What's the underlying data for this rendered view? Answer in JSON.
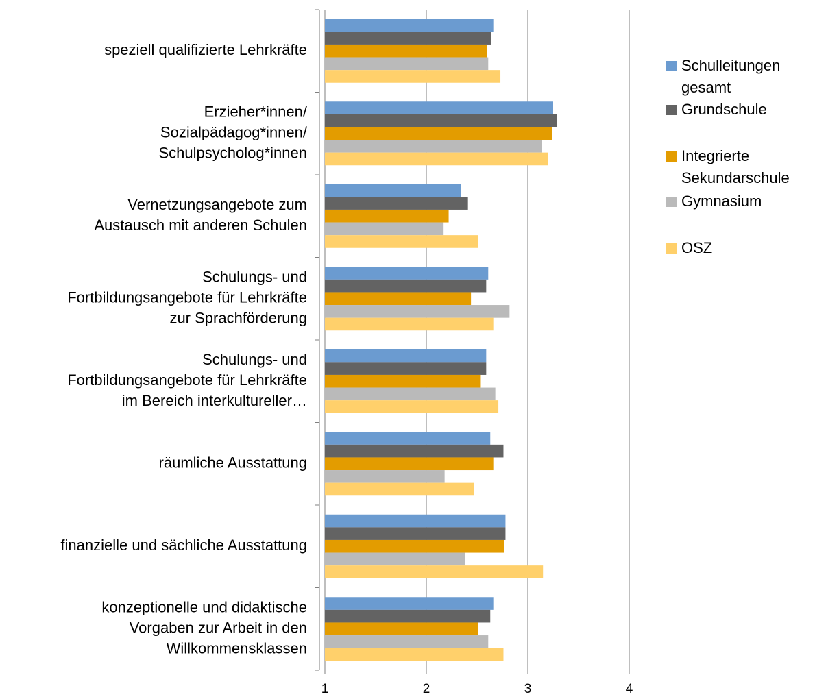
{
  "chart_data": {
    "type": "barh",
    "categories": [
      [
        "speziell qualifizierte Lehrkräfte"
      ],
      [
        "Erzieher*innen/",
        "Sozialpädagog*innen/",
        "Schulpsycholog*innen"
      ],
      [
        "Vernetzungsangebote zum",
        "Austausch mit anderen Schulen"
      ],
      [
        "Schulungs- und",
        "Fortbildungsangebote für Lehrkräfte",
        "zur Sprachförderung"
      ],
      [
        "Schulungs- und",
        "Fortbildungsangebote für Lehrkräfte",
        "im Bereich interkultureller…"
      ],
      [
        "räumliche Ausstattung"
      ],
      [
        "finanzielle und sächliche Ausstattung"
      ],
      [
        "konzeptionelle und didaktische",
        "Vorgaben zur Arbeit in den",
        "Willkommensklassen"
      ]
    ],
    "series": [
      {
        "name": "Schulleitungen gesamt",
        "color": "#6b9bd0",
        "values": [
          2.66,
          3.25,
          2.34,
          2.61,
          2.59,
          2.63,
          2.78,
          2.66
        ]
      },
      {
        "name": "Grundschule",
        "color": "#636363",
        "values": [
          2.64,
          3.29,
          2.41,
          2.59,
          2.59,
          2.76,
          2.78,
          2.63
        ]
      },
      {
        "name": "Integrierte Sekundarschule",
        "color": "#e39c00",
        "values": [
          2.6,
          3.24,
          2.22,
          2.44,
          2.53,
          2.66,
          2.77,
          2.51
        ]
      },
      {
        "name": "Gymnasium",
        "color": "#bababa",
        "values": [
          2.61,
          3.14,
          2.17,
          2.82,
          2.68,
          2.18,
          2.38,
          2.61
        ]
      },
      {
        "name": "OSZ",
        "color": "#ffd06b",
        "values": [
          2.73,
          3.2,
          2.51,
          2.66,
          2.71,
          2.47,
          3.15,
          2.76
        ]
      }
    ],
    "xlim": [
      1,
      4
    ],
    "xticks": [
      1,
      2,
      3,
      4
    ],
    "grid": true,
    "legend": "right"
  }
}
